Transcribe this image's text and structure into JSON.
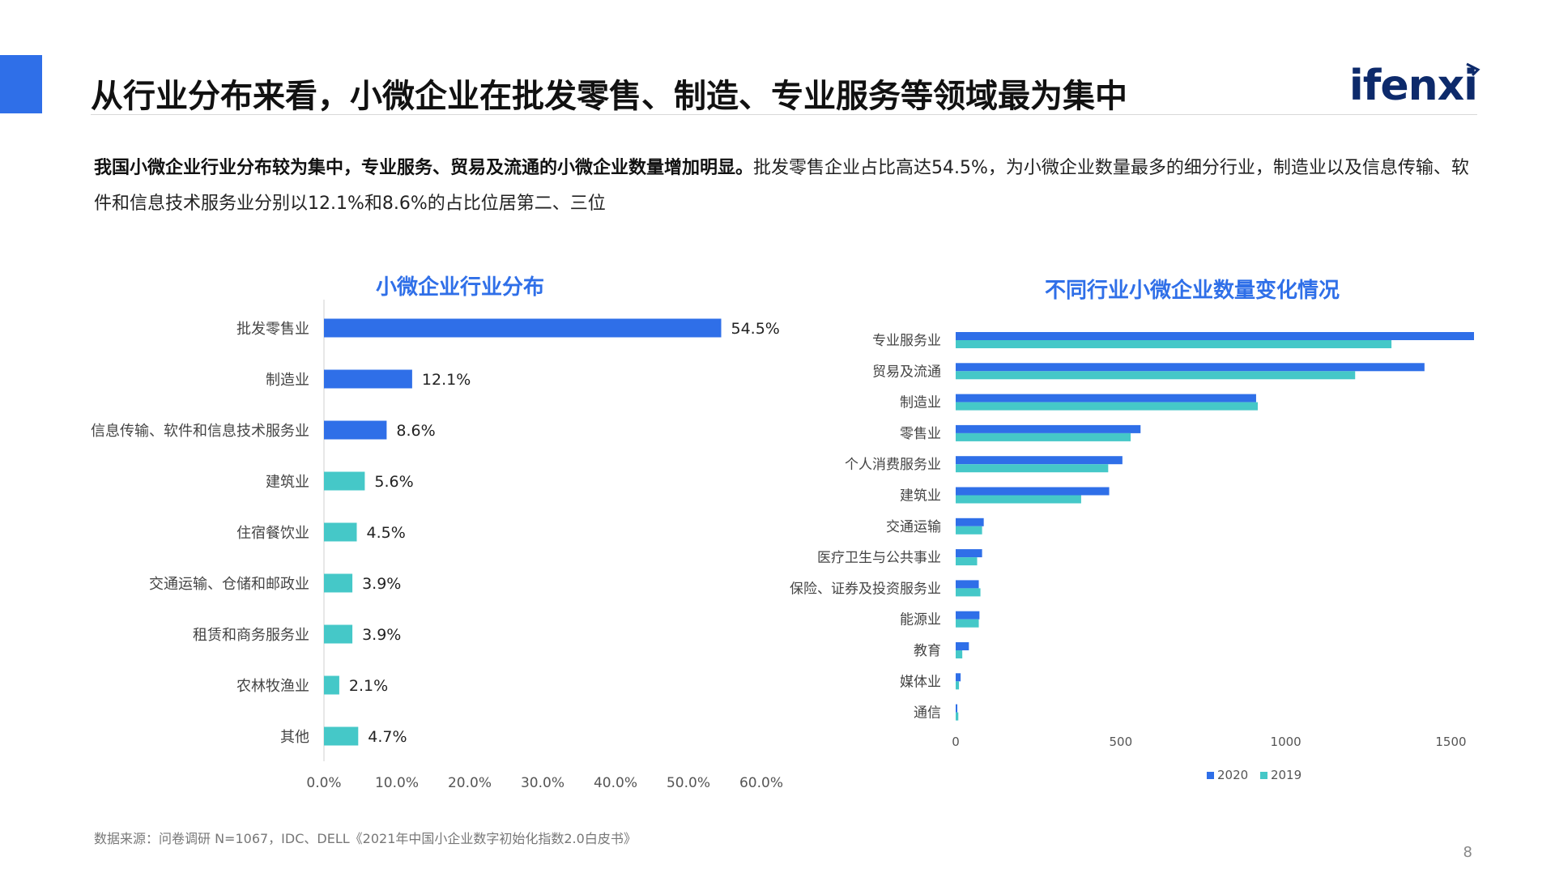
{
  "page": {
    "title": "从行业分布来看，小微企业在批发零售、制造、专业服务等领域最为集中",
    "logo": "ifenxi",
    "intro_bold": "我国小微企业行业分布较为集中，专业服务、贸易及流通的小微企业数量增加明显。",
    "intro_rest": "批发零售企业占比高达54.5%，为小微企业数量最多的细分行业，制造业以及信息传输、软件和信息技术服务业分别以12.1%和8.6%的占比位居第二、三位",
    "source": "数据来源：问卷调研 N=1067，IDC、DELL《2021年中国小企业数字初始化指数2.0白皮书》",
    "page_number": "8",
    "colors": {
      "accent": "#2f6fe8",
      "secondary": "#45c8c8",
      "title_blue": "#2f6fe8"
    }
  },
  "chart_data": [
    {
      "type": "bar",
      "orientation": "horizontal",
      "title": "小微企业行业分布",
      "categories": [
        "批发零售业",
        "制造业",
        "信息传输、软件和信息技术服务业",
        "建筑业",
        "住宿餐饮业",
        "交通运输、仓储和邮政业",
        "租赁和商务服务业",
        "农林牧渔业",
        "其他"
      ],
      "values": [
        54.5,
        12.1,
        8.6,
        5.6,
        4.5,
        3.9,
        3.9,
        2.1,
        4.7
      ],
      "value_labels": [
        "54.5%",
        "12.1%",
        "8.6%",
        "5.6%",
        "4.5%",
        "3.9%",
        "3.9%",
        "2.1%",
        "4.7%"
      ],
      "bar_colors": [
        "#2f6fe8",
        "#2f6fe8",
        "#2f6fe8",
        "#45c8c8",
        "#45c8c8",
        "#45c8c8",
        "#45c8c8",
        "#45c8c8",
        "#45c8c8"
      ],
      "xlim": [
        0,
        60
      ],
      "x_ticks": [
        "0.0%",
        "10.0%",
        "20.0%",
        "30.0%",
        "40.0%",
        "50.0%",
        "60.0%"
      ],
      "grid": false
    },
    {
      "type": "bar",
      "orientation": "horizontal",
      "title": "不同行业小微企业数量变化情况",
      "categories": [
        "专业服务业",
        "贸易及流通",
        "制造业",
        "零售业",
        "个人消费服务业",
        "建筑业",
        "交通运输",
        "医疗卫生与公共事业",
        "保险、证券及投资服务业",
        "能源业",
        "教育",
        "媒体业",
        "通信"
      ],
      "series": [
        {
          "name": "2020",
          "color": "#2f6fe8",
          "values": [
            1570,
            1420,
            910,
            560,
            505,
            465,
            85,
            80,
            70,
            72,
            40,
            15,
            5
          ]
        },
        {
          "name": "2019",
          "color": "#45c8c8",
          "values": [
            1320,
            1210,
            915,
            530,
            462,
            380,
            80,
            65,
            75,
            70,
            20,
            10,
            8
          ]
        }
      ],
      "xlim": [
        0,
        1570
      ],
      "x_ticks": [
        "0",
        "500",
        "1000",
        "1500"
      ],
      "legend": "bottom-right",
      "grid": false
    }
  ]
}
